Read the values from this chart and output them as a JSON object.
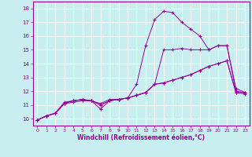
{
  "title": "",
  "xlabel": "Windchill (Refroidissement éolien,°C)",
  "ylabel": "",
  "bg_color": "#c8eef0",
  "line_color": "#990099",
  "grid_color": "#ffffff",
  "xlim": [
    -0.5,
    23.5
  ],
  "ylim": [
    9.5,
    18.5
  ],
  "yticks": [
    10,
    11,
    12,
    13,
    14,
    15,
    16,
    17,
    18
  ],
  "xticks": [
    0,
    1,
    2,
    3,
    4,
    5,
    6,
    7,
    8,
    9,
    10,
    11,
    12,
    13,
    14,
    15,
    16,
    17,
    18,
    19,
    20,
    21,
    22,
    23
  ],
  "series": [
    {
      "x": [
        0,
        1,
        2,
        3,
        4,
        5,
        6,
        7,
        8,
        9,
        10,
        11,
        12,
        13,
        14,
        15,
        16,
        17,
        18,
        19,
        20,
        21,
        22,
        23
      ],
      "y": [
        9.9,
        10.2,
        10.4,
        11.1,
        11.2,
        11.3,
        11.3,
        10.7,
        11.3,
        11.4,
        11.5,
        11.7,
        11.9,
        12.5,
        12.6,
        12.8,
        13.0,
        13.2,
        13.5,
        13.8,
        14.0,
        14.2,
        11.9,
        11.9
      ]
    },
    {
      "x": [
        0,
        1,
        2,
        3,
        4,
        5,
        6,
        7,
        8,
        9,
        10,
        11,
        12,
        13,
        14,
        15,
        16,
        17,
        18,
        19,
        20,
        21,
        22,
        23
      ],
      "y": [
        9.9,
        10.2,
        10.4,
        11.1,
        11.3,
        11.4,
        11.3,
        11.1,
        11.4,
        11.4,
        11.5,
        11.7,
        11.9,
        12.5,
        12.6,
        12.8,
        13.0,
        13.2,
        13.5,
        13.8,
        14.0,
        14.2,
        11.9,
        11.8
      ]
    },
    {
      "x": [
        0,
        1,
        2,
        3,
        4,
        5,
        6,
        7,
        8,
        9,
        10,
        11,
        12,
        13,
        14,
        15,
        16,
        17,
        18,
        19,
        20,
        21,
        22,
        23
      ],
      "y": [
        9.9,
        10.2,
        10.4,
        11.1,
        11.3,
        11.4,
        11.3,
        11.0,
        11.3,
        11.4,
        11.5,
        11.7,
        11.9,
        12.5,
        15.0,
        15.0,
        15.1,
        15.0,
        15.0,
        15.0,
        15.3,
        15.3,
        12.0,
        11.9
      ]
    },
    {
      "x": [
        0,
        1,
        2,
        3,
        4,
        5,
        6,
        7,
        8,
        9,
        10,
        11,
        12,
        13,
        14,
        15,
        16,
        17,
        18,
        19,
        20,
        21,
        22,
        23
      ],
      "y": [
        9.9,
        10.2,
        10.4,
        11.2,
        11.3,
        11.4,
        11.3,
        11.0,
        11.3,
        11.4,
        11.5,
        12.5,
        15.3,
        17.2,
        17.8,
        17.7,
        17.0,
        16.5,
        16.0,
        15.0,
        15.3,
        15.3,
        12.2,
        11.9
      ]
    }
  ]
}
